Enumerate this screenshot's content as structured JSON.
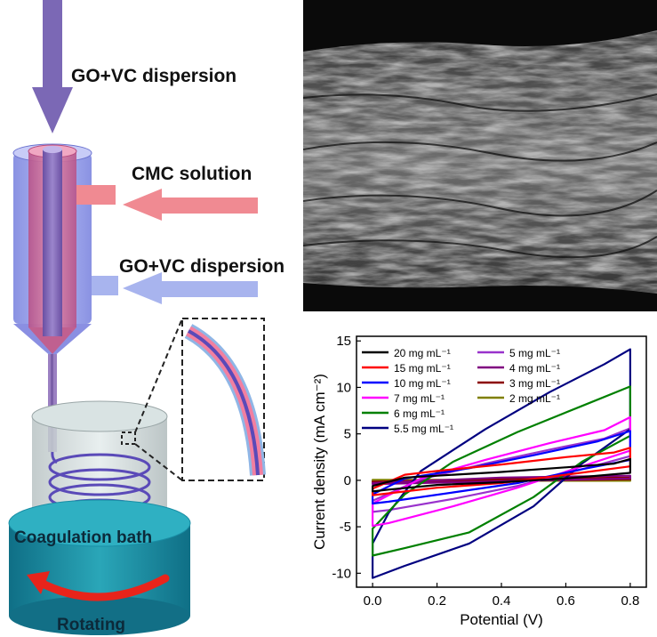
{
  "schematic": {
    "labels": {
      "inner_feed": "GO+VC dispersion",
      "middle_feed": "CMC solution",
      "outer_feed": "GO+VC dispersion",
      "bath": "Coagulation bath",
      "rotating": "Rotating"
    },
    "colors": {
      "inner_arrow": "#7b68b5",
      "middle_arrow": "#f08a92",
      "outer_arrow": "#a8b4ee",
      "bath_top": "#2aa6b8",
      "bath_side": "#1a87a3",
      "rotation_arrow": "#e8241b",
      "spinneret": "#8c8fe6"
    }
  },
  "sem_image": {
    "description_icon": "sem-fiber-micrograph"
  },
  "chart_data": {
    "type": "line",
    "xlabel": "Potential (V)",
    "ylabel": "Current density (mA cm⁻²)",
    "xlim": [
      -0.05,
      0.85
    ],
    "ylim": [
      -11.5,
      15.5
    ],
    "xticks": [
      "0.0",
      "0.2",
      "0.4",
      "0.6",
      "0.8"
    ],
    "yticks": [
      "-10",
      "-5",
      "0",
      "5",
      "10",
      "15"
    ],
    "legend_position": "top-left",
    "legend_columns": 2,
    "series": [
      {
        "name": "20 mg mL⁻¹",
        "color": "#000000",
        "upper": [
          [
            0,
            -0.6
          ],
          [
            0.1,
            0.3
          ],
          [
            0.2,
            0.5
          ],
          [
            0.4,
            0.9
          ],
          [
            0.6,
            1.4
          ],
          [
            0.75,
            1.8
          ],
          [
            0.8,
            2.3
          ]
        ],
        "lower": [
          [
            0.8,
            0.8
          ],
          [
            0.6,
            0.2
          ],
          [
            0.4,
            -0.2
          ],
          [
            0.2,
            -0.5
          ],
          [
            0.05,
            -1.0
          ],
          [
            0,
            -1.2
          ]
        ]
      },
      {
        "name": "15 mg mL⁻¹",
        "color": "#ff0000",
        "upper": [
          [
            0,
            -0.9
          ],
          [
            0.1,
            0.6
          ],
          [
            0.2,
            1.0
          ],
          [
            0.4,
            1.7
          ],
          [
            0.6,
            2.5
          ],
          [
            0.75,
            3.0
          ],
          [
            0.8,
            3.5
          ]
        ],
        "lower": [
          [
            0.8,
            1.5
          ],
          [
            0.6,
            0.6
          ],
          [
            0.4,
            -0.3
          ],
          [
            0.2,
            -0.8
          ],
          [
            0.05,
            -1.4
          ],
          [
            0,
            -1.6
          ]
        ]
      },
      {
        "name": "10 mg mL⁻¹",
        "color": "#0000ff",
        "upper": [
          [
            0,
            -1.5
          ],
          [
            0.1,
            0.2
          ],
          [
            0.3,
            1.3
          ],
          [
            0.5,
            2.7
          ],
          [
            0.7,
            4.2
          ],
          [
            0.8,
            5.3
          ]
        ],
        "lower": [
          [
            0.8,
            2.2
          ],
          [
            0.65,
            1.2
          ],
          [
            0.45,
            -0.3
          ],
          [
            0.25,
            -1.3
          ],
          [
            0.05,
            -2.3
          ],
          [
            0,
            -2.5
          ]
        ]
      },
      {
        "name": "7 mg mL⁻¹",
        "color": "#ff00ff",
        "upper": [
          [
            0,
            -2.5
          ],
          [
            0.15,
            0.2
          ],
          [
            0.35,
            2.2
          ],
          [
            0.55,
            4.0
          ],
          [
            0.72,
            5.4
          ],
          [
            0.8,
            6.8
          ]
        ],
        "lower": [
          [
            0.8,
            3.2
          ],
          [
            0.65,
            1.5
          ],
          [
            0.45,
            -0.8
          ],
          [
            0.25,
            -2.8
          ],
          [
            0.05,
            -4.6
          ],
          [
            0,
            -4.9
          ]
        ]
      },
      {
        "name": "6 mg mL⁻¹",
        "color": "#008000",
        "upper": [
          [
            0,
            -5.2
          ],
          [
            0.1,
            -1.5
          ],
          [
            0.25,
            2.0
          ],
          [
            0.45,
            5.2
          ],
          [
            0.65,
            8.0
          ],
          [
            0.8,
            10.1
          ]
        ],
        "lower": [
          [
            0.8,
            4.8
          ],
          [
            0.65,
            2.0
          ],
          [
            0.5,
            -1.8
          ],
          [
            0.3,
            -5.6
          ],
          [
            0.1,
            -7.3
          ],
          [
            0,
            -8.1
          ]
        ]
      },
      {
        "name": "5.5 mg mL⁻¹",
        "color": "#000080",
        "upper": [
          [
            0,
            -6.8
          ],
          [
            0.05,
            -3.5
          ],
          [
            0.15,
            1.0
          ],
          [
            0.35,
            5.5
          ],
          [
            0.55,
            9.5
          ],
          [
            0.72,
            12.5
          ],
          [
            0.8,
            14.1
          ]
        ],
        "lower": [
          [
            0.8,
            5.5
          ],
          [
            0.65,
            1.8
          ],
          [
            0.5,
            -2.8
          ],
          [
            0.3,
            -6.8
          ],
          [
            0.1,
            -9.2
          ],
          [
            0,
            -10.5
          ]
        ]
      },
      {
        "name": "5 mg mL⁻¹",
        "color": "#9932cc",
        "upper": [
          [
            0,
            -2.2
          ],
          [
            0.15,
            0.1
          ],
          [
            0.35,
            1.8
          ],
          [
            0.55,
            3.3
          ],
          [
            0.72,
            4.5
          ],
          [
            0.8,
            5.6
          ]
        ],
        "lower": [
          [
            0.8,
            2.6
          ],
          [
            0.65,
            1.2
          ],
          [
            0.45,
            -0.6
          ],
          [
            0.25,
            -2.0
          ],
          [
            0.05,
            -3.2
          ],
          [
            0,
            -3.4
          ]
        ]
      },
      {
        "name": "4 mg mL⁻¹",
        "color": "#800080",
        "upper": [
          [
            0,
            -0.3
          ],
          [
            0.4,
            0.3
          ],
          [
            0.8,
            0.5
          ]
        ],
        "lower": [
          [
            0.8,
            0.2
          ],
          [
            0.4,
            -0.1
          ],
          [
            0,
            -0.4
          ]
        ]
      },
      {
        "name": "3 mg mL⁻¹",
        "color": "#8b0000",
        "upper": [
          [
            0,
            -0.15
          ],
          [
            0.4,
            0.15
          ],
          [
            0.8,
            0.3
          ]
        ],
        "lower": [
          [
            0.8,
            0.1
          ],
          [
            0.4,
            -0.05
          ],
          [
            0,
            -0.2
          ]
        ]
      },
      {
        "name": "2 mg mL⁻¹",
        "color": "#808000",
        "upper": [
          [
            0,
            0.05
          ],
          [
            0.8,
            0.05
          ]
        ],
        "lower": [
          [
            0.8,
            -0.05
          ],
          [
            0,
            -0.05
          ]
        ]
      }
    ]
  }
}
